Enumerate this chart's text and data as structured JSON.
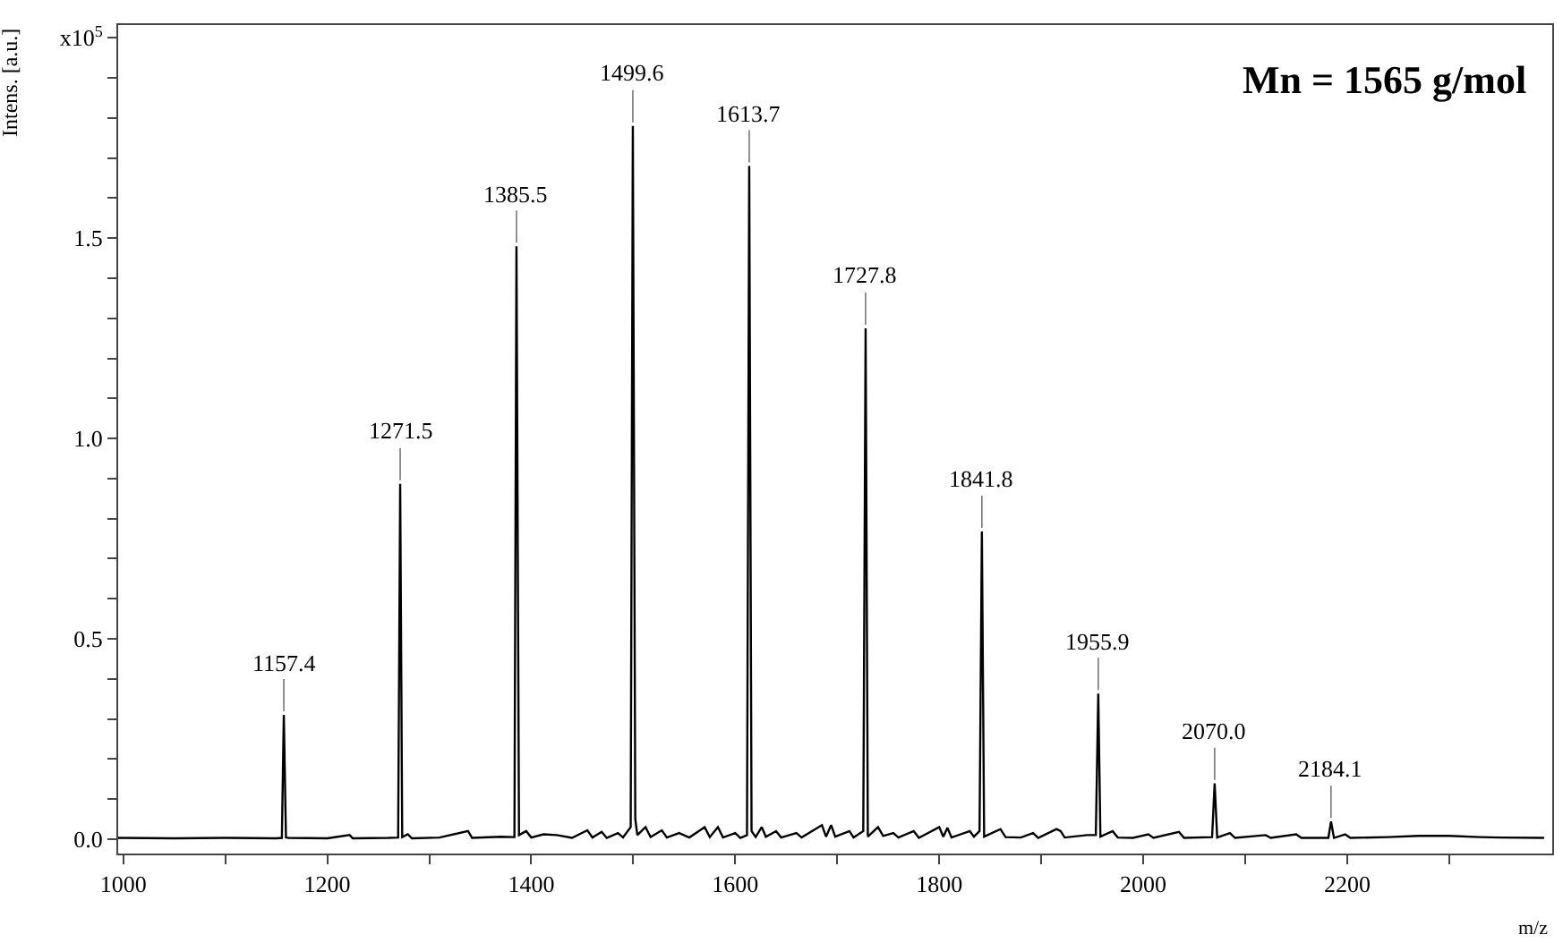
{
  "chart_data": {
    "type": "line",
    "xlabel": "m/z",
    "ylabel": "Intens. [a.u.]",
    "xlim": [
      995,
      2401
    ],
    "xticks": [
      1000,
      {
        "value": 1100,
        "label": null
      },
      1200,
      {
        "value": 1300,
        "label": null
      },
      1400,
      {
        "value": 1500,
        "label": null
      },
      1600,
      {
        "value": 1700,
        "label": null
      },
      1800,
      {
        "value": 1900,
        "label": null
      },
      2000,
      {
        "value": 2100,
        "label": null
      },
      2200,
      {
        "value": 2300,
        "label": null
      }
    ],
    "ylim": [
      -0.036,
      2.032
    ],
    "yticks": [
      {
        "value": 0,
        "label": "0.0"
      },
      {
        "value": 0.1,
        "label": null
      },
      {
        "value": 0.2,
        "label": null
      },
      {
        "value": 0.3,
        "label": null
      },
      {
        "value": 0.4,
        "label": null
      },
      0.5,
      {
        "value": 0.6,
        "label": null
      },
      {
        "value": 0.7,
        "label": null
      },
      {
        "value": 0.8,
        "label": null
      },
      {
        "value": 0.9,
        "label": null
      },
      {
        "value": 1,
        "label": "1.0"
      },
      {
        "value": 1.1,
        "label": null
      },
      {
        "value": 1.2,
        "label": null
      },
      {
        "value": 1.3,
        "label": null
      },
      {
        "value": 1.4,
        "label": null
      },
      1.5,
      {
        "value": 1.6,
        "label": null
      },
      {
        "value": 1.7,
        "label": null
      },
      {
        "value": 1.8,
        "label": null
      },
      {
        "value": 1.9,
        "label": null
      },
      {
        "value": 2,
        "label": "x10$^{5}$"
      }
    ],
    "grid": false,
    "legend": false,
    "line_style": "solid",
    "series": [
      {
        "color": "#000000",
        "x": [
          995,
          1050,
          1100,
          1150,
          1155.5,
          1157.4,
          1159.5,
          1162,
          1200,
          1222,
          1225,
          1260,
          1269.5,
          1271.5,
          1273.5,
          1279,
          1283,
          1310,
          1338,
          1342,
          1370,
          1383.5,
          1385.5,
          1388,
          1395,
          1400,
          1412,
          1425,
          1440,
          1455,
          1460,
          1469,
          1474,
          1485,
          1490,
          1497.5,
          1499.6,
          1502,
          1504,
          1512,
          1517,
          1528,
          1533,
          1545,
          1555,
          1570,
          1575,
          1583,
          1588,
          1600,
          1605,
          1611.5,
          1613.7,
          1616,
          1620,
          1626,
          1630,
          1640,
          1645,
          1660,
          1665,
          1685,
          1689,
          1694,
          1698,
          1712,
          1716,
          1725.5,
          1727.8,
          1730,
          1740,
          1745,
          1755,
          1760,
          1775,
          1780,
          1800,
          1804,
          1808,
          1812,
          1830,
          1834,
          1839.5,
          1841.8,
          1844,
          1860,
          1865,
          1880,
          1892,
          1897,
          1915,
          1919,
          1923,
          1945,
          1953.5,
          1955.9,
          1958,
          1970,
          1975,
          1990,
          2005,
          2010,
          2035,
          2040,
          2067.5,
          2070,
          2072.5,
          2085,
          2090,
          2120,
          2125,
          2150,
          2155,
          2181.5,
          2184.1,
          2187,
          2198,
          2203,
          2240,
          2270,
          2300,
          2330,
          2350,
          2393
        ],
        "values": [
          0.003,
          0.002,
          0.003,
          0.002,
          0.003,
          0.31,
          0.004,
          0.003,
          0.002,
          0.01,
          0.002,
          0.003,
          0.004,
          0.887,
          0.005,
          0.012,
          0.002,
          0.004,
          0.02,
          0.003,
          0.006,
          0.005,
          1.48,
          0.01,
          0.02,
          0.004,
          0.012,
          0.01,
          0.003,
          0.022,
          0.004,
          0.018,
          0.003,
          0.015,
          0.004,
          0.03,
          1.78,
          0.05,
          0.01,
          0.03,
          0.005,
          0.022,
          0.004,
          0.015,
          0.004,
          0.03,
          0.005,
          0.03,
          0.004,
          0.015,
          0.003,
          0.01,
          1.68,
          0.02,
          0.005,
          0.03,
          0.006,
          0.02,
          0.004,
          0.015,
          0.004,
          0.035,
          0.006,
          0.035,
          0.006,
          0.02,
          0.004,
          0.02,
          1.275,
          0.006,
          0.03,
          0.008,
          0.015,
          0.004,
          0.02,
          0.003,
          0.03,
          0.006,
          0.028,
          0.004,
          0.02,
          0.006,
          0.02,
          0.768,
          0.006,
          0.025,
          0.005,
          0.004,
          0.015,
          0.003,
          0.025,
          0.02,
          0.004,
          0.01,
          0.01,
          0.363,
          0.006,
          0.02,
          0.004,
          0.003,
          0.012,
          0.003,
          0.018,
          0.003,
          0.005,
          0.139,
          0.004,
          0.015,
          0.003,
          0.01,
          0.003,
          0.012,
          0.003,
          0.003,
          0.044,
          0.003,
          0.012,
          0.003,
          0.005,
          0.008,
          0.008,
          0.005,
          0.004,
          0.003
        ]
      }
    ],
    "annotations": [
      {
        "text": "1157.4",
        "x": 1157.4,
        "y": 0.31
      },
      {
        "text": "1271.5",
        "x": 1271.5,
        "y": 0.887
      },
      {
        "text": "1385.5",
        "x": 1385.5,
        "y": 1.48
      },
      {
        "text": "1499.6",
        "x": 1499.6,
        "y": 1.78
      },
      {
        "text": "1613.7",
        "x": 1613.7,
        "y": 1.68
      },
      {
        "text": "1727.8",
        "x": 1727.8,
        "y": 1.275
      },
      {
        "text": "1841.8",
        "x": 1841.8,
        "y": 0.768
      },
      {
        "text": "1955.9",
        "x": 1955.9,
        "y": 0.363
      },
      {
        "text": "2070.0",
        "x": 2070,
        "y": 0.139
      },
      {
        "text": "2184.1",
        "x": 2184.1,
        "y": 0.044
      },
      "Mn = 1565 g/mol"
    ]
  }
}
